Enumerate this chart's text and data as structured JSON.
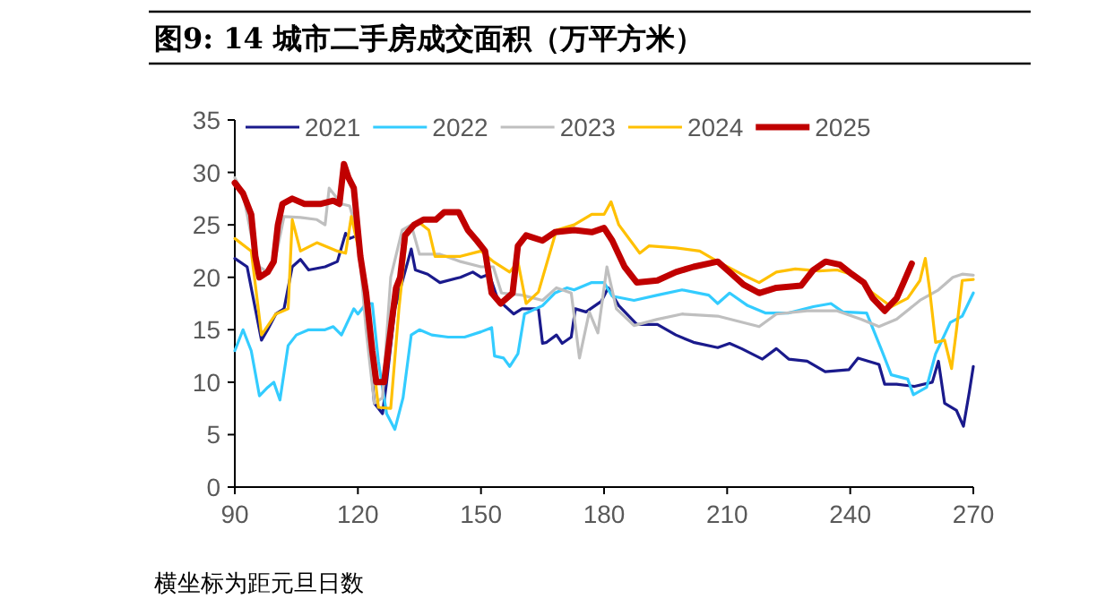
{
  "chart_data": {
    "type": "line",
    "title": "图9:  14 城市二手房成交面积（万平方米）",
    "annotations": [
      "横坐标为距元旦日数"
    ],
    "xlim": [
      90,
      270
    ],
    "xticks": [
      90,
      120,
      150,
      180,
      210,
      240,
      270
    ],
    "ylim": [
      0,
      35
    ],
    "yticks": [
      0,
      5,
      10,
      15,
      20,
      25,
      30,
      35
    ],
    "grid": false,
    "legend": "top",
    "marker": "none",
    "line_style": "solid",
    "series": [
      {
        "name": "2021",
        "color": "#1a1a8c",
        "x": [
          90,
          93,
          95,
          96.5,
          98,
          100,
          102,
          104,
          106,
          108,
          112,
          115,
          117,
          118,
          120,
          122,
          124,
          126,
          127,
          129,
          133,
          134,
          137,
          140,
          145,
          148,
          150,
          152,
          154,
          156,
          158,
          160,
          164,
          165,
          166,
          168.4,
          169.8,
          172,
          173,
          175.6,
          179.3,
          181,
          183.6,
          188,
          193,
          197.5,
          201.8,
          207.7,
          210.6,
          213.5,
          218.6,
          222,
          225,
          229.5,
          233.9,
          239.7,
          241.9,
          247,
          248.4,
          251.3,
          255.7,
          260,
          261.5,
          263,
          265.9,
          267.6,
          269,
          270
        ],
        "values": [
          21.8,
          21,
          17,
          14,
          15,
          16.5,
          17,
          21,
          21.7,
          20.7,
          21,
          21.5,
          24.2,
          23.7,
          24,
          17,
          8,
          7,
          10,
          17,
          22.7,
          20.7,
          20.3,
          19.5,
          20,
          20.5,
          20,
          20.3,
          18,
          17.2,
          16.5,
          17,
          17,
          13.7,
          13.8,
          14.5,
          13.7,
          14.3,
          17,
          16.7,
          17.7,
          19,
          17.3,
          15.5,
          15.5,
          14.5,
          13.8,
          13.3,
          13.7,
          13.2,
          12.2,
          13.2,
          12.2,
          12,
          11,
          11.2,
          12.3,
          11.7,
          9.8,
          9.8,
          9.6,
          10,
          12,
          8,
          7.3,
          5.8,
          9,
          11.5
        ]
      },
      {
        "name": "2022",
        "color": "#33ccff",
        "x": [
          90,
          92,
          94,
          96,
          98,
          99.5,
          101,
          103,
          105,
          108,
          112,
          114,
          116,
          119,
          120,
          122,
          123.5,
          125,
          127,
          129,
          131,
          133,
          135,
          138,
          142,
          146,
          150,
          152.6,
          153.3,
          155.5,
          157,
          159,
          160.6,
          165,
          168,
          171,
          172.7,
          177,
          180,
          182,
          187.3,
          193,
          199,
          205.5,
          207.7,
          210.6,
          215,
          219.3,
          225,
          231,
          235.3,
          238.2,
          244,
          247.7,
          250,
          254,
          255.4,
          258.6,
          260.8,
          264.4,
          267.3,
          270
        ],
        "values": [
          13,
          15,
          13,
          8.7,
          9.5,
          10,
          8.3,
          13.5,
          14.5,
          15,
          15,
          15.3,
          14.5,
          17,
          16.5,
          17.5,
          17.5,
          12,
          7,
          5.5,
          8.5,
          14.5,
          15,
          14.5,
          14.3,
          14.3,
          14.8,
          15.2,
          12.5,
          12.3,
          11.5,
          12.7,
          16.5,
          17.3,
          18.5,
          19,
          18.8,
          19.5,
          19.5,
          18.2,
          17.8,
          18.3,
          18.8,
          18.3,
          17.5,
          18.5,
          17.3,
          16.6,
          16.6,
          17.2,
          17.5,
          16.7,
          16.6,
          13,
          10.7,
          10.3,
          8.8,
          9.5,
          12.7,
          15.7,
          16.3,
          18.5
        ]
      },
      {
        "name": "2023",
        "color": "#bfbfbf",
        "x": [
          90,
          92,
          94,
          96,
          98,
          100,
          102,
          106,
          110,
          112,
          113,
          116,
          118,
          120,
          122,
          124,
          126,
          128,
          130.8,
          133,
          135,
          140,
          145,
          150,
          153,
          155,
          160,
          165,
          168.4,
          172,
          174,
          176.4,
          178.5,
          180.7,
          183,
          187.3,
          193,
          199,
          207.7,
          217.8,
          222,
          229.5,
          236.8,
          242.6,
          247,
          251.3,
          257,
          261.5,
          265,
          267.3,
          270
        ],
        "values": [
          29.5,
          28,
          24,
          21,
          20.5,
          22,
          25.8,
          25.7,
          25.5,
          25,
          28.5,
          27,
          26.8,
          24,
          15,
          8,
          8.5,
          20,
          24.5,
          25,
          22.2,
          22.2,
          21.5,
          21,
          21,
          18.5,
          18.3,
          17.8,
          19,
          18.5,
          12.3,
          16.7,
          14.7,
          21,
          17,
          15.4,
          16,
          16.5,
          16.3,
          15.3,
          16.5,
          16.8,
          16.8,
          16,
          15.3,
          16,
          17.8,
          18.8,
          20,
          20.3,
          20.2
        ]
      },
      {
        "name": "2024",
        "color": "#ffc000",
        "x": [
          90,
          94,
          96.5,
          100,
          103,
          104,
          106,
          110,
          115,
          117,
          118.4,
          120,
          122,
          125,
          128,
          130,
          132,
          135,
          137.3,
          138.8,
          145,
          150,
          153,
          157,
          159,
          161,
          164,
          168.4,
          172.7,
          177,
          180,
          181.7,
          183.6,
          188.7,
          191,
          197.5,
          203.3,
          207.7,
          213.5,
          217.8,
          222,
          226.6,
          232.4,
          236.8,
          241,
          245.5,
          250,
          254,
          257,
          258.3,
          259.3,
          260.8,
          263,
          264.7,
          265.9,
          267.3,
          270
        ],
        "values": [
          23.7,
          22.5,
          14.5,
          16.5,
          17,
          25.5,
          22.5,
          23.3,
          22.5,
          22.3,
          25.8,
          23,
          18,
          7.6,
          7.5,
          17,
          24.5,
          25.2,
          24.5,
          22,
          22,
          22.5,
          21.5,
          20.5,
          21.5,
          17.5,
          18.6,
          24.5,
          25,
          26,
          26,
          27.2,
          25,
          22.3,
          23,
          22.8,
          22.5,
          21.5,
          20.3,
          19.5,
          20.5,
          20.8,
          20.6,
          20.7,
          20.2,
          18.5,
          17.2,
          18,
          19.7,
          21.8,
          19,
          13.8,
          14,
          11.3,
          15,
          19.7,
          19.8
        ]
      },
      {
        "name": "2025",
        "color": "#c00000",
        "x": [
          90,
          92,
          94,
          95,
          96,
          98,
          99.5,
          100.5,
          101.6,
          104,
          107,
          111,
          114,
          115.5,
          116.6,
          117.7,
          119,
          120.6,
          122,
          123.5,
          124.5,
          126.4,
          128,
          129.3,
          130.3,
          131.5,
          133.7,
          136,
          139,
          141,
          144.6,
          146.8,
          149,
          151,
          152.6,
          154.8,
          157.7,
          159,
          161,
          165,
          168,
          172.7,
          177,
          180,
          182,
          185,
          188,
          193,
          197.5,
          201.8,
          207.7,
          210.6,
          214,
          217.8,
          222,
          228,
          231,
          234,
          237.5,
          240.4,
          243.3,
          245.5,
          248.4,
          251.3,
          253,
          255
        ],
        "values": [
          29,
          28,
          26,
          22,
          20,
          20.5,
          21.5,
          25,
          27,
          27.5,
          27,
          27,
          27.3,
          27,
          30.8,
          29.5,
          28.5,
          22,
          18.5,
          13,
          10,
          10,
          15,
          19,
          20,
          24,
          25,
          25.5,
          25.5,
          26.2,
          26.2,
          24.5,
          23.5,
          22.5,
          18.5,
          17.5,
          18.5,
          23,
          24,
          23.5,
          24.3,
          24.5,
          24.3,
          24.7,
          23.5,
          21,
          19.5,
          19.7,
          20.5,
          21,
          21.5,
          20.5,
          19.3,
          18.5,
          19,
          19.2,
          20.7,
          21.5,
          21.2,
          20.3,
          19.5,
          18,
          16.8,
          18,
          19.5,
          21.3
        ]
      }
    ]
  }
}
